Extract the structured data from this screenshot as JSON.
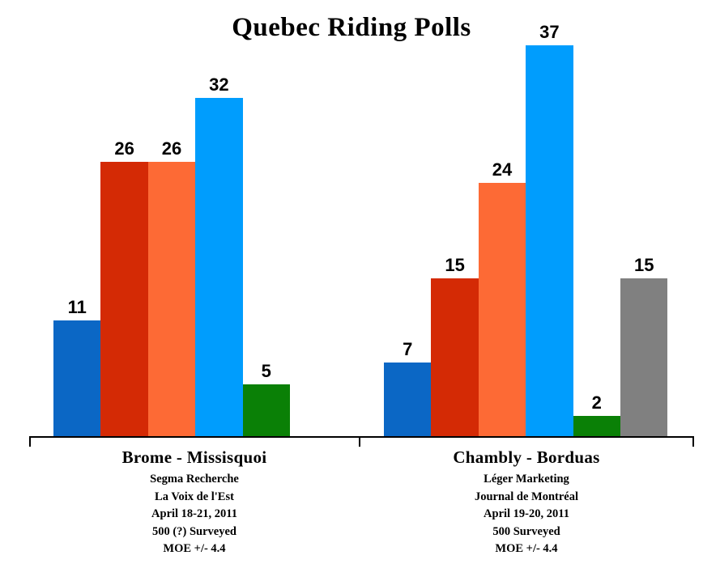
{
  "chart_data": {
    "type": "bar",
    "title": "Quebec Riding Polls",
    "xlabel": "",
    "ylabel": "",
    "ylim": [
      0,
      40
    ],
    "grid": false,
    "legend_position": "none",
    "value_labels": "above bars",
    "axis_color": "#000000",
    "background_color": "#ffffff",
    "groups": [
      {
        "label": "Brome - Missisquoi",
        "source_lines": [
          "Segma Recherche",
          "La Voix de l'Est",
          "April 18-21, 2011",
          "500 (?) Surveyed",
          "MOE +/- 4.4"
        ],
        "values": [
          11,
          26,
          26,
          32,
          5
        ],
        "colors": [
          "#0b67c5",
          "#d42a05",
          "#fd6a35",
          "#009dfd",
          "#0a8006"
        ]
      },
      {
        "label": "Chambly - Borduas",
        "source_lines": [
          "Léger Marketing",
          "Journal de Montréal",
          "April 19-20, 2011",
          "500 Surveyed",
          "MOE +/- 4.4"
        ],
        "values": [
          7,
          15,
          24,
          37,
          2,
          15
        ],
        "colors": [
          "#0b67c5",
          "#d42a05",
          "#fd6a35",
          "#009dfd",
          "#0a8006",
          "#808080"
        ]
      }
    ]
  }
}
